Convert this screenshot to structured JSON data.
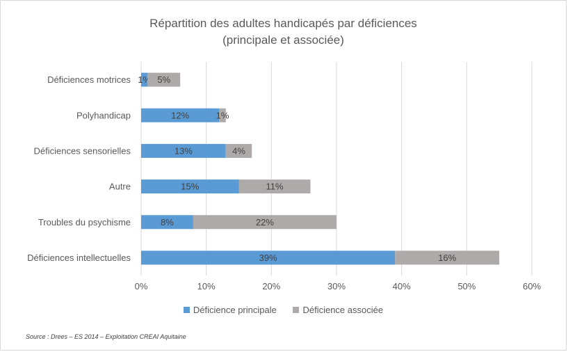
{
  "chart_data": {
    "type": "bar",
    "orientation": "horizontal",
    "stacked": true,
    "title": [
      "Répartition des adultes handicapés par déficiences",
      "(principale et associée)"
    ],
    "categories": [
      "Déficiences motrices",
      "Polyhandicap",
      "Déficiences sensorielles",
      "Autre",
      "Troubles du psychisme",
      "Déficiences intellectuelles"
    ],
    "series": [
      {
        "name": "Déficience principale",
        "color": "#5b9bd5",
        "values": [
          1,
          12,
          13,
          15,
          8,
          39
        ],
        "labels": [
          "1%",
          "12%",
          "13%",
          "15%",
          "8%",
          "39%"
        ]
      },
      {
        "name": "Déficience associée",
        "color": "#aeaaaa",
        "values": [
          5,
          1,
          4,
          11,
          22,
          16
        ],
        "labels": [
          "5%",
          "1%",
          "4%",
          "11%",
          "22%",
          "16%"
        ]
      }
    ],
    "xlim": [
      0,
      60
    ],
    "xticks": [
      0,
      10,
      20,
      30,
      40,
      50,
      60
    ],
    "xtick_labels": [
      "0%",
      "10%",
      "20%",
      "30%",
      "40%",
      "50%",
      "60%"
    ],
    "grid": true,
    "legend_position": "bottom"
  },
  "source": "Source : Drees – ES 2014 – Exploitation CREAI Aquitaine"
}
